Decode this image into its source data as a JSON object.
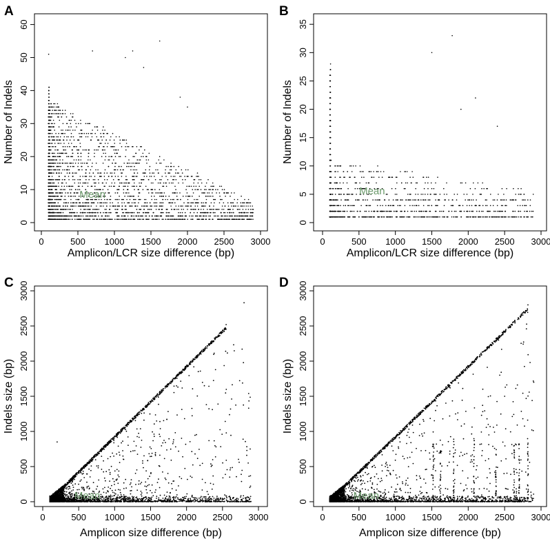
{
  "chart_data": [
    {
      "panel_label": "A",
      "type": "scatter",
      "xlabel": "Amplicon/LCR size difference (bp)",
      "ylabel": "Number of Indels",
      "xticks": [
        0,
        500,
        1000,
        1500,
        2000,
        2500,
        3000
      ],
      "yticks": [
        0,
        10,
        20,
        30,
        40,
        50,
        60
      ],
      "xlim": [
        0,
        3000
      ],
      "ylim": [
        0,
        62
      ],
      "grid": false,
      "annotation": "Mean",
      "annotation_pos": [
        700,
        7.5
      ],
      "annotation_color": "#6b9a6b",
      "point_color": "#000000",
      "mode": "count",
      "max_y": 55,
      "n_points": 2600,
      "x_range": [
        100,
        2900
      ],
      "notable_points": [
        [
          100,
          51
        ],
        [
          1620,
          55
        ],
        [
          1250,
          52
        ],
        [
          1150,
          50
        ],
        [
          1400,
          47
        ],
        [
          700,
          52
        ],
        [
          1900,
          38
        ],
        [
          2000,
          35
        ]
      ]
    },
    {
      "panel_label": "B",
      "type": "scatter",
      "xlabel": "Amplicon/LCR size difference (bp)",
      "ylabel": "Number of Indels",
      "xticks": [
        0,
        500,
        1000,
        1500,
        2000,
        2500,
        3000
      ],
      "yticks": [
        0,
        5,
        10,
        15,
        20,
        25,
        30,
        35
      ],
      "xlim": [
        0,
        3000
      ],
      "ylim": [
        0,
        36
      ],
      "grid": false,
      "annotation": "Mean",
      "annotation_pos": [
        680,
        5
      ],
      "annotation_color": "#6b9a6b",
      "point_color": "#000000",
      "mode": "count_b",
      "max_y": 33,
      "n_points": 900,
      "x_range": [
        100,
        2900
      ],
      "notable_points": [
        [
          1780,
          33
        ],
        [
          1500,
          30
        ],
        [
          110,
          28
        ],
        [
          2100,
          22
        ],
        [
          1900,
          20
        ],
        [
          2400,
          17
        ]
      ]
    },
    {
      "panel_label": "C",
      "type": "scatter",
      "xlabel": "Amplicon size difference (bp)",
      "ylabel": "Indels size (bp)",
      "xticks": [
        0,
        500,
        1000,
        1500,
        2000,
        2500,
        3000
      ],
      "yticks": [
        0,
        500,
        1000,
        1500,
        2000,
        2500,
        3000
      ],
      "xlim": [
        0,
        3000
      ],
      "ylim": [
        0,
        3000
      ],
      "grid": false,
      "annotation": "Mean",
      "annotation_pos": [
        620,
        40
      ],
      "annotation_color": "#6b9a6b",
      "point_color": "#000000",
      "mode": "size_c",
      "diag_max": 2550,
      "n_points": 3200,
      "x_range": [
        100,
        2900
      ],
      "notable_points": [
        [
          2800,
          2830
        ],
        [
          2550,
          2520
        ],
        [
          200,
          850
        ],
        [
          2600,
          350
        ],
        [
          2650,
          60
        ]
      ]
    },
    {
      "panel_label": "D",
      "type": "scatter",
      "xlabel": "Amplicon size difference (bp)",
      "ylabel": "Indels size (bp)",
      "xticks": [
        0,
        500,
        1000,
        1500,
        2000,
        2500,
        3000
      ],
      "yticks": [
        0,
        500,
        1000,
        1500,
        2000,
        2500,
        3000
      ],
      "xlim": [
        0,
        3000
      ],
      "ylim": [
        0,
        3000
      ],
      "grid": false,
      "annotation": "Mean",
      "annotation_pos": [
        600,
        40
      ],
      "annotation_color": "#6b9a6b",
      "point_color": "#000000",
      "mode": "size_d",
      "diag_max": 2820,
      "n_points": 3000,
      "x_range": [
        100,
        2900
      ],
      "notable_points": [
        [
          2820,
          2800
        ],
        [
          2850,
          1980
        ],
        [
          2900,
          1700
        ],
        [
          2750,
          1180
        ],
        [
          2650,
          820
        ],
        [
          2200,
          1600
        ],
        [
          2500,
          1500
        ]
      ]
    }
  ]
}
